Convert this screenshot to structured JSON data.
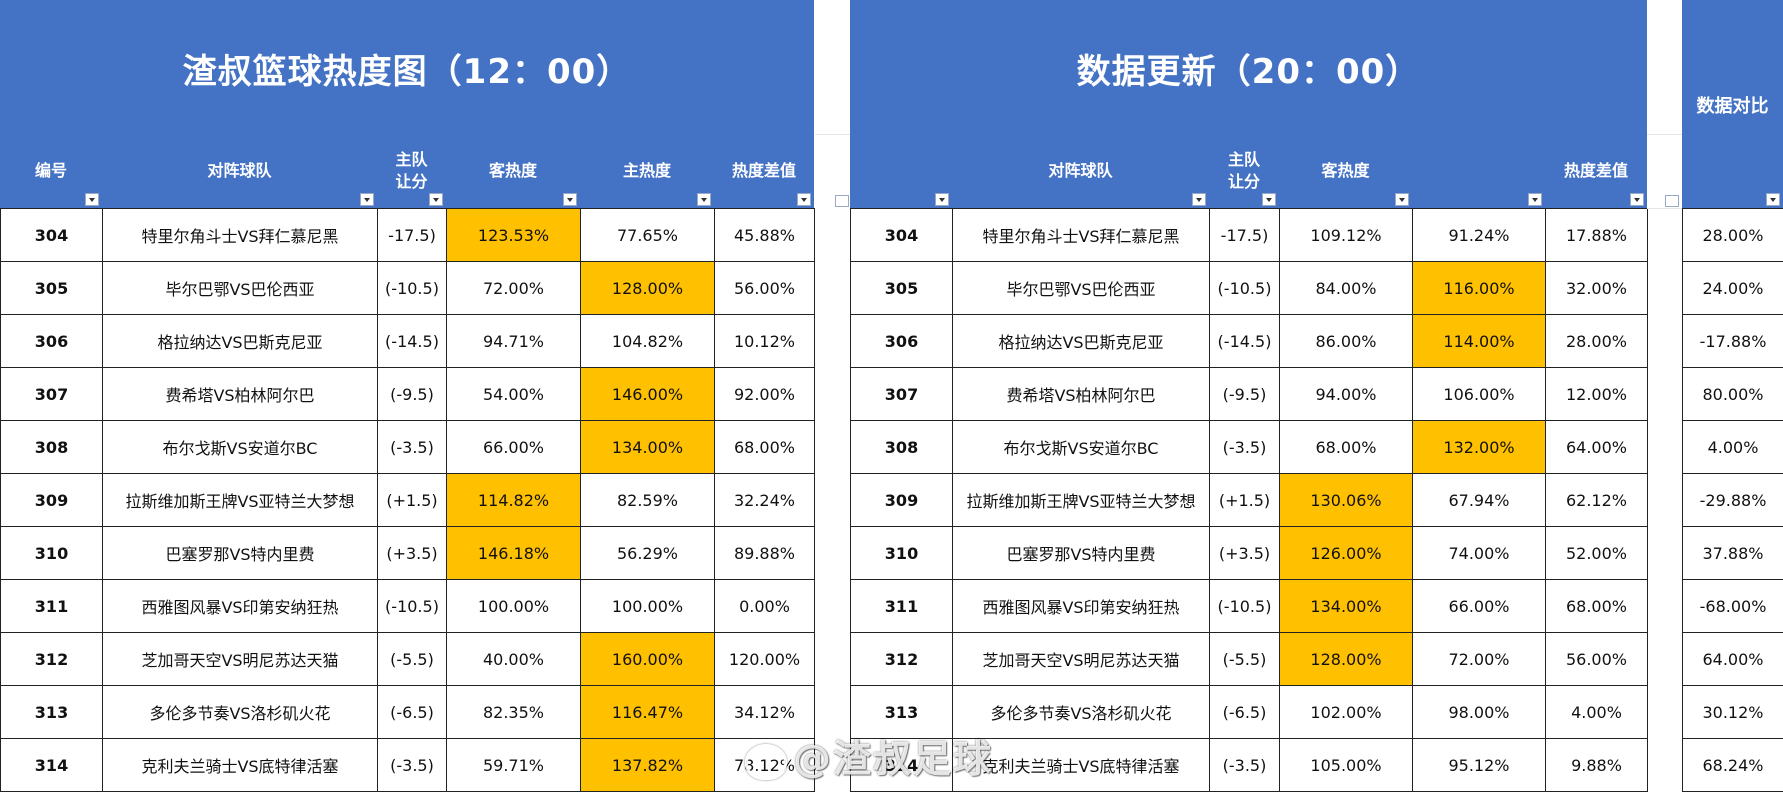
{
  "left": {
    "title": "渣叔篮球热度图（12：00）",
    "headers": [
      "编号",
      "对阵球队",
      "主队让分",
      "客热度",
      "主热度",
      "热度差值"
    ],
    "rows": [
      {
        "id": "304",
        "match": "特里尔角斗士VS拜仁慕尼黑",
        "spread": "-17.5)",
        "away": "123.53%",
        "home": "77.65%",
        "diff": "45.88%",
        "hl": "away"
      },
      {
        "id": "305",
        "match": "毕尔巴鄂VS巴伦西亚",
        "spread": "(-10.5)",
        "away": "72.00%",
        "home": "128.00%",
        "diff": "56.00%",
        "hl": "home"
      },
      {
        "id": "306",
        "match": "格拉纳达VS巴斯克尼亚",
        "spread": "(-14.5)",
        "away": "94.71%",
        "home": "104.82%",
        "diff": "10.12%",
        "hl": ""
      },
      {
        "id": "307",
        "match": "费希塔VS柏林阿尔巴",
        "spread": "(-9.5)",
        "away": "54.00%",
        "home": "146.00%",
        "diff": "92.00%",
        "hl": "home"
      },
      {
        "id": "308",
        "match": "布尔戈斯VS安道尔BC",
        "spread": "(-3.5)",
        "away": "66.00%",
        "home": "134.00%",
        "diff": "68.00%",
        "hl": "home"
      },
      {
        "id": "309",
        "match": "拉斯维加斯王牌VS亚特兰大梦想",
        "spread": "(+1.5)",
        "away": "114.82%",
        "home": "82.59%",
        "diff": "32.24%",
        "hl": "away"
      },
      {
        "id": "310",
        "match": "巴塞罗那VS特内里费",
        "spread": "(+3.5)",
        "away": "146.18%",
        "home": "56.29%",
        "diff": "89.88%",
        "hl": "away"
      },
      {
        "id": "311",
        "match": "西雅图风暴VS印第安纳狂热",
        "spread": "(-10.5)",
        "away": "100.00%",
        "home": "100.00%",
        "diff": "0.00%",
        "hl": ""
      },
      {
        "id": "312",
        "match": "芝加哥天空VS明尼苏达天猫",
        "spread": "(-5.5)",
        "away": "40.00%",
        "home": "160.00%",
        "diff": "120.00%",
        "hl": "home"
      },
      {
        "id": "313",
        "match": "多伦多节奏VS洛杉矶火花",
        "spread": "(-6.5)",
        "away": "82.35%",
        "home": "116.47%",
        "diff": "34.12%",
        "hl": "home"
      },
      {
        "id": "314",
        "match": "克利夫兰骑士VS底特律活塞",
        "spread": "(-3.5)",
        "away": "59.71%",
        "home": "137.82%",
        "diff": "78.12%",
        "hl": "home"
      }
    ]
  },
  "right": {
    "title": "数据更新（20：00）",
    "headers": [
      "对阵球队",
      "主队让分",
      "客热度",
      "",
      "热度差值"
    ],
    "rows": [
      {
        "id": "304",
        "match": "特里尔角斗士VS拜仁慕尼黑",
        "spread": "-17.5)",
        "away": "109.12%",
        "home": "91.24%",
        "diff": "17.88%",
        "hl": ""
      },
      {
        "id": "305",
        "match": "毕尔巴鄂VS巴伦西亚",
        "spread": "(-10.5)",
        "away": "84.00%",
        "home": "116.00%",
        "diff": "32.00%",
        "hl": "home"
      },
      {
        "id": "306",
        "match": "格拉纳达VS巴斯克尼亚",
        "spread": "(-14.5)",
        "away": "86.00%",
        "home": "114.00%",
        "diff": "28.00%",
        "hl": "home"
      },
      {
        "id": "307",
        "match": "费希塔VS柏林阿尔巴",
        "spread": "(-9.5)",
        "away": "94.00%",
        "home": "106.00%",
        "diff": "12.00%",
        "hl": ""
      },
      {
        "id": "308",
        "match": "布尔戈斯VS安道尔BC",
        "spread": "(-3.5)",
        "away": "68.00%",
        "home": "132.00%",
        "diff": "64.00%",
        "hl": "home"
      },
      {
        "id": "309",
        "match": "拉斯维加斯王牌VS亚特兰大梦想",
        "spread": "(+1.5)",
        "away": "130.06%",
        "home": "67.94%",
        "diff": "62.12%",
        "hl": "away"
      },
      {
        "id": "310",
        "match": "巴塞罗那VS特内里费",
        "spread": "(+3.5)",
        "away": "126.00%",
        "home": "74.00%",
        "diff": "52.00%",
        "hl": "away"
      },
      {
        "id": "311",
        "match": "西雅图风暴VS印第安纳狂热",
        "spread": "(-10.5)",
        "away": "134.00%",
        "home": "66.00%",
        "diff": "68.00%",
        "hl": "away"
      },
      {
        "id": "312",
        "match": "芝加哥天空VS明尼苏达天猫",
        "spread": "(-5.5)",
        "away": "128.00%",
        "home": "72.00%",
        "diff": "56.00%",
        "hl": "away"
      },
      {
        "id": "313",
        "match": "多伦多节奏VS洛杉矶火花",
        "spread": "(-6.5)",
        "away": "102.00%",
        "home": "98.00%",
        "diff": "4.00%",
        "hl": ""
      },
      {
        "id": "314",
        "match": "克利夫兰骑士VS底特律活塞",
        "spread": "(-3.5)",
        "away": "105.00%",
        "home": "95.12%",
        "diff": "9.88%",
        "hl": ""
      }
    ]
  },
  "compare": {
    "title": "数据对比",
    "values": [
      "28.00%",
      "24.00%",
      "-17.88%",
      "80.00%",
      "4.00%",
      "-29.88%",
      "37.88%",
      "-68.00%",
      "64.00%",
      "30.12%",
      "68.24%"
    ]
  },
  "watermark": "@渣叔足球"
}
